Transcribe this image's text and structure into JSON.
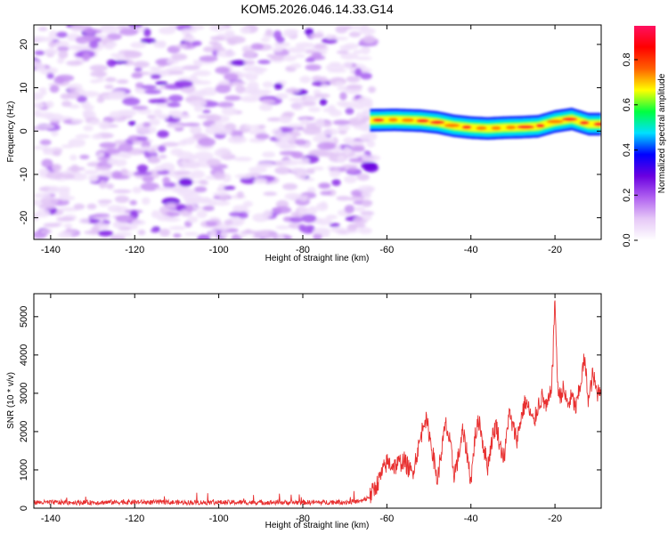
{
  "title": "KOM5.2026.046.14.33.G14",
  "chart_data": [
    {
      "type": "heatmap",
      "xlabel": "Height of straight line (km)",
      "ylabel": "Frequency (Hz)",
      "xlim": [
        -144,
        -9
      ],
      "ylim": [
        -25,
        24.5
      ],
      "xticks": [
        -140,
        -120,
        -100,
        -80,
        -60,
        -40,
        -20
      ],
      "xtick_labels": [
        "-140",
        "-120",
        "-100",
        "-80",
        "-60",
        "-40",
        "-20"
      ],
      "yticks": [
        -20,
        -10,
        0,
        10,
        20
      ],
      "ytick_labels": [
        "-20",
        "-10",
        "0",
        "10",
        "20"
      ],
      "noise_region_km": [
        -144,
        -63
      ],
      "signal_line": {
        "x": [
          -64,
          -58,
          -52,
          -48,
          -44,
          -40,
          -36,
          -32,
          -28,
          -24,
          -20,
          -16,
          -12,
          -9
        ],
        "freq_hz": [
          2.5,
          2.6,
          2.4,
          2.0,
          1.2,
          0.8,
          0.6,
          0.8,
          0.9,
          1.1,
          2.2,
          2.8,
          1.6,
          1.6
        ],
        "amplitude": [
          0.85,
          0.95,
          0.9,
          0.85,
          0.8,
          0.9,
          0.85,
          0.9,
          0.85,
          0.8,
          0.9,
          0.95,
          0.85,
          0.8
        ]
      },
      "colorbar": {
        "label": "Normalized spectral amplitude",
        "ticks": [
          0.0,
          0.2,
          0.4,
          0.6,
          0.8
        ],
        "tick_labels": [
          "0.0",
          "0.2",
          "0.4",
          "0.6",
          "0.8"
        ],
        "range": [
          0.0,
          0.95
        ],
        "colors": [
          "#ffffff",
          "#e6c8f7",
          "#b060f0",
          "#6a00e0",
          "#0000ff",
          "#00e0ff",
          "#00ff40",
          "#ffff00",
          "#ff6000",
          "#ff0000",
          "#ff1060"
        ]
      }
    },
    {
      "type": "line",
      "xlabel": "Height of straight line (km)",
      "ylabel": "SNR (10 * v/v)",
      "xlim": [
        -144,
        -9
      ],
      "ylim": [
        0,
        5600
      ],
      "xticks": [
        -140,
        -120,
        -100,
        -80,
        -60,
        -40,
        -20
      ],
      "xtick_labels": [
        "-140",
        "-120",
        "-100",
        "-80",
        "-60",
        "-40",
        "-20"
      ],
      "yticks": [
        0,
        1000,
        2000,
        3000,
        4000,
        5000
      ],
      "ytick_labels": [
        "0",
        "1000",
        "2000",
        "3000",
        "4000",
        "5000"
      ],
      "color": "#e83030",
      "series": {
        "name": "SNR",
        "x": [
          -144,
          -130,
          -122,
          -110,
          -100,
          -90,
          -80,
          -70,
          -66,
          -64,
          -62,
          -60,
          -58,
          -56,
          -54,
          -52,
          -51,
          -50,
          -49,
          -48,
          -47,
          -46,
          -45,
          -44,
          -43,
          -42,
          -41,
          -40,
          -39,
          -38,
          -37,
          -36,
          -35,
          -34,
          -33,
          -32,
          -31,
          -30,
          -29,
          -28,
          -27,
          -26,
          -25,
          -24,
          -23,
          -22,
          -21,
          -20.5,
          -20,
          -19.5,
          -19,
          -18,
          -17,
          -16,
          -15,
          -14,
          -13,
          -12,
          -11,
          -10,
          -9
        ],
        "y": [
          150,
          150,
          160,
          150,
          150,
          150,
          150,
          160,
          180,
          300,
          700,
          1200,
          1100,
          1250,
          900,
          1800,
          2400,
          2000,
          1400,
          700,
          1500,
          2200,
          1700,
          900,
          1300,
          2000,
          1500,
          700,
          1900,
          2300,
          1600,
          1100,
          1800,
          2200,
          1600,
          1300,
          2500,
          2100,
          1800,
          2400,
          2800,
          2500,
          2200,
          2700,
          2900,
          2600,
          3000,
          3800,
          5600,
          3500,
          2900,
          3100,
          2700,
          2900,
          2600,
          3200,
          3900,
          2800,
          3500,
          3000,
          3200
        ]
      }
    }
  ]
}
